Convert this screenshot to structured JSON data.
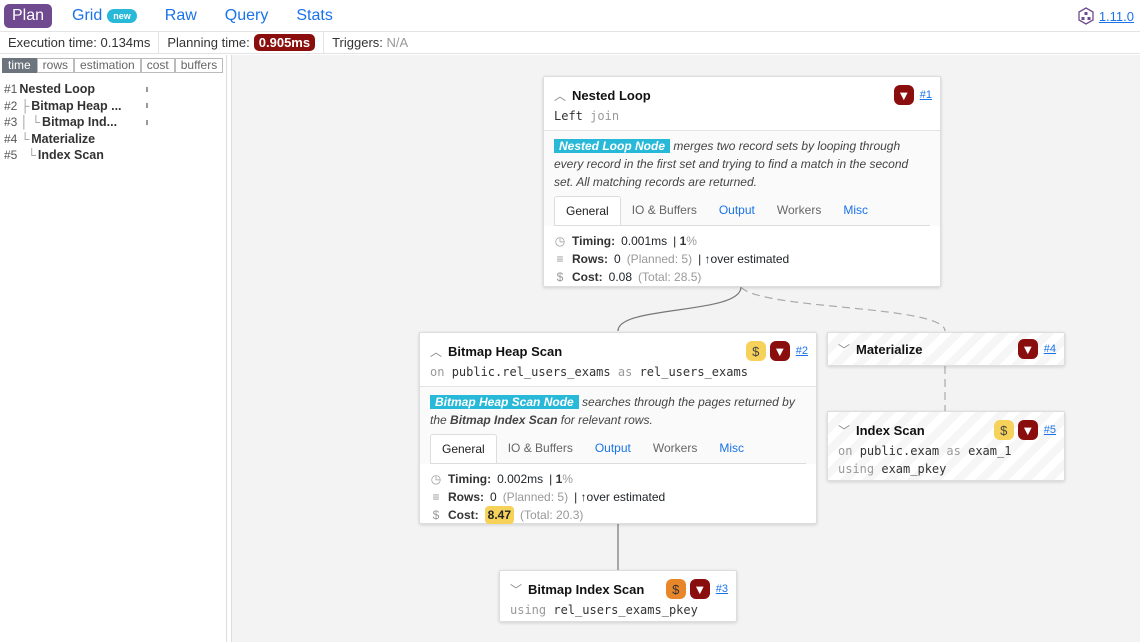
{
  "nav": {
    "tabs": [
      {
        "label": "Plan",
        "active": true
      },
      {
        "label": "Grid",
        "badge": "new"
      },
      {
        "label": "Raw"
      },
      {
        "label": "Query"
      },
      {
        "label": "Stats"
      }
    ],
    "version": "1.11.0"
  },
  "stats": {
    "execution_label": "Execution time:",
    "execution": "0.134ms",
    "planning_label": "Planning time:",
    "planning": "0.905ms",
    "triggers_label": "Triggers:",
    "triggers": "N/A"
  },
  "sidebar": {
    "metrics": [
      "time",
      "rows",
      "estimation",
      "cost",
      "buffers"
    ],
    "active_metric": "time",
    "tree": [
      {
        "id": "#1",
        "prefix": "",
        "name": "Nested Loop"
      },
      {
        "id": "#2",
        "prefix": "├",
        "name": "Bitmap Heap ..."
      },
      {
        "id": "#3",
        "prefix": "│ └",
        "name": "Bitmap Ind..."
      },
      {
        "id": "#4",
        "prefix": "└",
        "name": "Materialize"
      },
      {
        "id": "#5",
        "prefix": "  └",
        "name": "Index Scan"
      }
    ]
  },
  "nodes": {
    "n1": {
      "title": "Nested Loop",
      "id": "#1",
      "sub_main": "Left",
      "sub_kw": "join",
      "desc_tag": "Nested Loop Node",
      "desc": "merges two record sets by looping through every record in the first set and trying to find a match in the second set. All matching records are returned.",
      "tabs": [
        "General",
        "IO & Buffers",
        "Output",
        "Workers",
        "Misc"
      ],
      "timing_label": "Timing:",
      "timing": "0.001ms",
      "timing_pct": "1",
      "rows_label": "Rows:",
      "rows": "0",
      "planned": "(Planned: 5)",
      "estimate": "over estimated",
      "cost_label": "Cost:",
      "cost": "0.08",
      "total": "(Total: 28.5)"
    },
    "n2": {
      "title": "Bitmap Heap Scan",
      "id": "#2",
      "on": "on",
      "relation": "public.rel_users_exams",
      "as": "as",
      "alias": "rel_users_exams",
      "desc_tag": "Bitmap Heap Scan Node",
      "desc_a": "searches through the pages returned by the",
      "desc_b": "Bitmap Index Scan",
      "desc_c": "for relevant rows.",
      "tabs": [
        "General",
        "IO & Buffers",
        "Output",
        "Workers",
        "Misc"
      ],
      "timing_label": "Timing:",
      "timing": "0.002ms",
      "timing_pct": "1",
      "rows_label": "Rows:",
      "rows": "0",
      "planned": "(Planned: 5)",
      "estimate": "over estimated",
      "cost_label": "Cost:",
      "cost": "8.47",
      "total": "(Total: 20.3)"
    },
    "n3": {
      "title": "Bitmap Index Scan",
      "id": "#3",
      "using": "using",
      "index": "rel_users_exams_pkey"
    },
    "n4": {
      "title": "Materialize",
      "id": "#4"
    },
    "n5": {
      "title": "Index Scan",
      "id": "#5",
      "on": "on",
      "relation": "public.exam",
      "as": "as",
      "alias": "exam_1",
      "using": "using",
      "index": "exam_pkey"
    }
  },
  "colors": {
    "plan_tab": "#6f4a8e",
    "link": "#1a73e8",
    "danger": "#8b0e0e",
    "cost_warn": "#f6d25a",
    "cost_high": "#e8862a",
    "node_tag": "#28b8d8"
  }
}
